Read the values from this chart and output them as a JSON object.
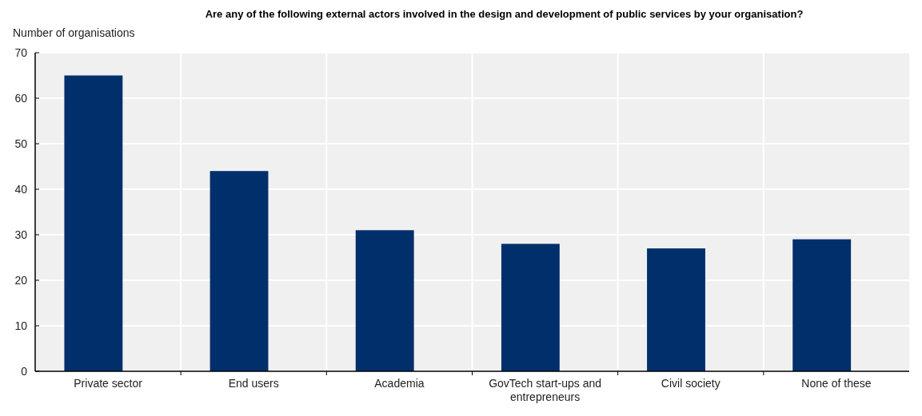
{
  "chart_data": {
    "type": "bar",
    "title": "Are any of the following external actors involved in the design and development of public services by your organisation?",
    "ylabel": "Number of organisations",
    "categories": [
      "Private sector",
      "End users",
      "Academia",
      "GovTech start-ups and entrepreneurs",
      "Civil society",
      "None of these"
    ],
    "values": [
      65,
      44,
      31,
      28,
      27,
      29
    ],
    "color": "#002f6c",
    "ylim": [
      0,
      70
    ],
    "yticks": [
      0,
      10,
      20,
      30,
      40,
      50,
      60,
      70
    ],
    "grid": true
  }
}
